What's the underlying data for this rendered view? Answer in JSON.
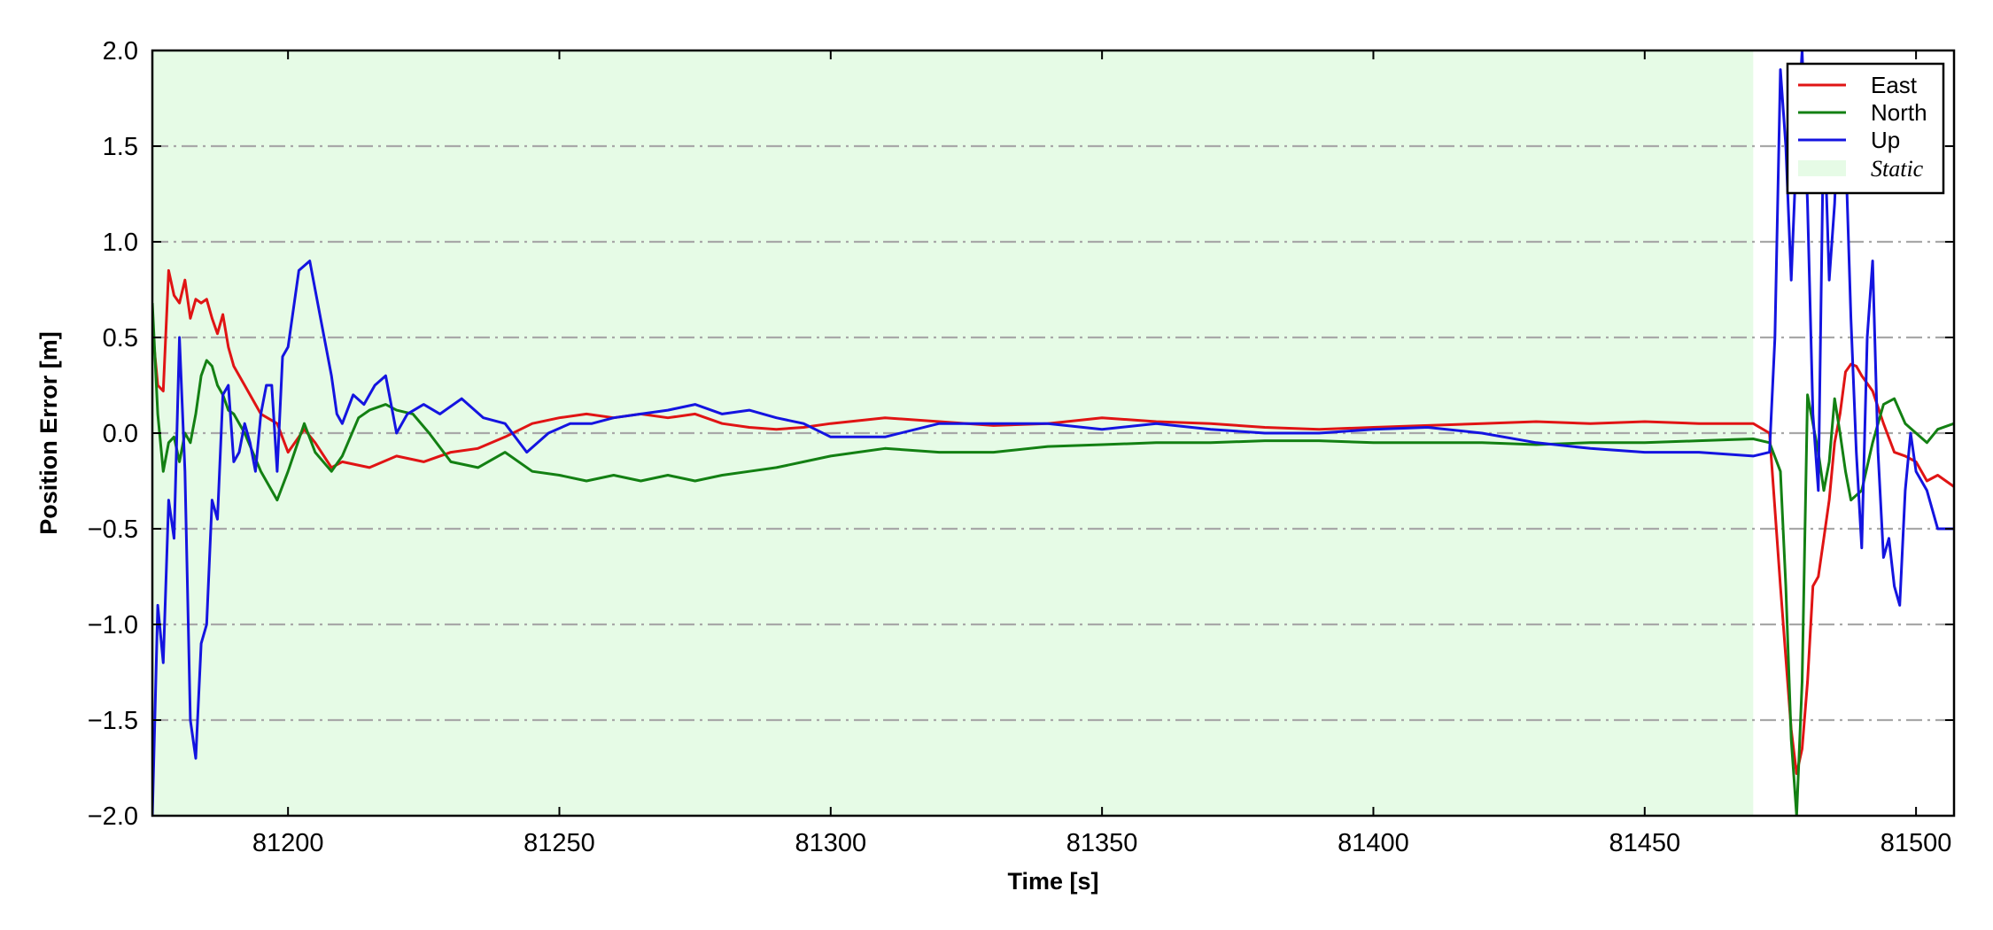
{
  "chart_data": {
    "type": "line",
    "xlabel": "Time [s]",
    "ylabel": "Position Error [m]",
    "xlim": [
      81175,
      81507
    ],
    "ylim": [
      -2.0,
      2.0
    ],
    "x_ticks": [
      81200,
      81250,
      81300,
      81350,
      81400,
      81450,
      81500
    ],
    "x_tick_labels": [
      "81200",
      "81250",
      "81300",
      "81350",
      "81400",
      "81450",
      "81500"
    ],
    "y_ticks": [
      -2.0,
      -1.5,
      -1.0,
      -0.5,
      0.0,
      0.5,
      1.0,
      1.5,
      2.0
    ],
    "y_tick_labels": [
      "−2.0",
      "−1.5",
      "−1.0",
      "−0.5",
      "0.0",
      "0.5",
      "1.0",
      "1.5",
      "2.0"
    ],
    "grid": "horizontal dash-dot",
    "legend_position": "top-right",
    "shaded_region": {
      "name": "Static",
      "x_start": 81175,
      "x_end": 81470,
      "color": "#e6fbe6"
    },
    "series": [
      {
        "name": "East",
        "color": "#e01414",
        "x": [
          81175,
          81176,
          81177,
          81178,
          81179,
          81180,
          81181,
          81182,
          81183,
          81184,
          81185,
          81186,
          81187,
          81188,
          81189,
          81190,
          81192,
          81195,
          81198,
          81200,
          81203,
          81205,
          81208,
          81210,
          81215,
          81220,
          81225,
          81230,
          81235,
          81240,
          81245,
          81250,
          81255,
          81260,
          81265,
          81270,
          81275,
          81280,
          81285,
          81290,
          81295,
          81300,
          81310,
          81320,
          81330,
          81340,
          81350,
          81360,
          81370,
          81380,
          81390,
          81400,
          81410,
          81420,
          81430,
          81440,
          81450,
          81460,
          81470,
          81473,
          81475,
          81477,
          81478,
          81479,
          81480,
          81481,
          81482,
          81483,
          81484,
          81485,
          81486,
          81487,
          81488,
          81489,
          81490,
          81492,
          81494,
          81496,
          81498,
          81500,
          81502,
          81504,
          81507
        ],
        "y": [
          0.55,
          0.25,
          0.22,
          0.85,
          0.72,
          0.68,
          0.8,
          0.6,
          0.7,
          0.68,
          0.7,
          0.6,
          0.52,
          0.62,
          0.45,
          0.35,
          0.25,
          0.1,
          0.05,
          -0.1,
          0.02,
          -0.05,
          -0.18,
          -0.15,
          -0.18,
          -0.12,
          -0.15,
          -0.1,
          -0.08,
          -0.02,
          0.05,
          0.08,
          0.1,
          0.08,
          0.1,
          0.08,
          0.1,
          0.05,
          0.03,
          0.02,
          0.03,
          0.05,
          0.08,
          0.06,
          0.04,
          0.05,
          0.08,
          0.06,
          0.05,
          0.03,
          0.02,
          0.03,
          0.04,
          0.05,
          0.06,
          0.05,
          0.06,
          0.05,
          0.05,
          0.0,
          -0.8,
          -1.55,
          -1.78,
          -1.65,
          -1.3,
          -0.8,
          -0.75,
          -0.55,
          -0.35,
          -0.05,
          0.1,
          0.32,
          0.36,
          0.35,
          0.3,
          0.22,
          0.05,
          -0.1,
          -0.12,
          -0.15,
          -0.25,
          -0.22,
          -0.28
        ]
      },
      {
        "name": "North",
        "color": "#138013",
        "x": [
          81175,
          81176,
          81177,
          81178,
          81179,
          81180,
          81181,
          81182,
          81183,
          81184,
          81185,
          81186,
          81187,
          81188,
          81189,
          81190,
          81192,
          81195,
          81198,
          81200,
          81203,
          81205,
          81208,
          81210,
          81213,
          81215,
          81218,
          81220,
          81223,
          81226,
          81230,
          81235,
          81240,
          81245,
          81250,
          81255,
          81260,
          81265,
          81270,
          81275,
          81280,
          81285,
          81290,
          81295,
          81300,
          81310,
          81320,
          81330,
          81340,
          81350,
          81360,
          81370,
          81380,
          81390,
          81400,
          81410,
          81420,
          81430,
          81440,
          81450,
          81460,
          81470,
          81473,
          81475,
          81476,
          81477,
          81478,
          81479,
          81480,
          81481,
          81482,
          81483,
          81484,
          81485,
          81486,
          81487,
          81488,
          81490,
          81492,
          81494,
          81496,
          81498,
          81500,
          81502,
          81504,
          81507
        ],
        "y": [
          0.68,
          0.1,
          -0.2,
          -0.05,
          -0.02,
          -0.15,
          0.0,
          -0.05,
          0.1,
          0.3,
          0.38,
          0.35,
          0.25,
          0.2,
          0.12,
          0.1,
          0.0,
          -0.2,
          -0.35,
          -0.2,
          0.05,
          -0.1,
          -0.2,
          -0.12,
          0.08,
          0.12,
          0.15,
          0.12,
          0.1,
          0.0,
          -0.15,
          -0.18,
          -0.1,
          -0.2,
          -0.22,
          -0.25,
          -0.22,
          -0.25,
          -0.22,
          -0.25,
          -0.22,
          -0.2,
          -0.18,
          -0.15,
          -0.12,
          -0.08,
          -0.1,
          -0.1,
          -0.07,
          -0.06,
          -0.05,
          -0.05,
          -0.04,
          -0.04,
          -0.05,
          -0.05,
          -0.05,
          -0.06,
          -0.05,
          -0.05,
          -0.04,
          -0.03,
          -0.05,
          -0.2,
          -0.8,
          -1.6,
          -2.0,
          -1.3,
          0.2,
          0.05,
          -0.1,
          -0.3,
          -0.15,
          0.18,
          0.0,
          -0.2,
          -0.35,
          -0.3,
          -0.05,
          0.15,
          0.18,
          0.05,
          0.0,
          -0.05,
          0.02,
          0.05
        ]
      },
      {
        "name": "Up",
        "color": "#1414e0",
        "x": [
          81175,
          81176,
          81177,
          81178,
          81179,
          81180,
          81181,
          81182,
          81183,
          81184,
          81185,
          81186,
          81187,
          81188,
          81189,
          81190,
          81191,
          81192,
          81193,
          81194,
          81195,
          81196,
          81197,
          81198,
          81199,
          81200,
          81202,
          81204,
          81206,
          81208,
          81209,
          81210,
          81212,
          81214,
          81216,
          81218,
          81220,
          81222,
          81225,
          81228,
          81232,
          81236,
          81240,
          81244,
          81248,
          81252,
          81256,
          81260,
          81265,
          81270,
          81275,
          81280,
          81285,
          81290,
          81295,
          81300,
          81310,
          81320,
          81330,
          81340,
          81350,
          81360,
          81370,
          81380,
          81390,
          81400,
          81410,
          81420,
          81430,
          81440,
          81450,
          81460,
          81470,
          81473,
          81474,
          81475,
          81476,
          81477,
          81478,
          81479,
          81480,
          81481,
          81482,
          81483,
          81484,
          81485,
          81486,
          81487,
          81488,
          81489,
          81490,
          81491,
          81492,
          81493,
          81494,
          81495,
          81496,
          81497,
          81498,
          81499,
          81500,
          81502,
          81504,
          81507
        ],
        "y": [
          -2.0,
          -0.9,
          -1.2,
          -0.35,
          -0.55,
          0.5,
          -0.2,
          -1.5,
          -1.7,
          -1.1,
          -1.0,
          -0.35,
          -0.45,
          0.2,
          0.25,
          -0.15,
          -0.1,
          0.05,
          -0.05,
          -0.2,
          0.1,
          0.25,
          0.25,
          -0.2,
          0.4,
          0.45,
          0.85,
          0.9,
          0.6,
          0.3,
          0.1,
          0.05,
          0.2,
          0.15,
          0.25,
          0.3,
          0.0,
          0.1,
          0.15,
          0.1,
          0.18,
          0.08,
          0.05,
          -0.1,
          0.0,
          0.05,
          0.05,
          0.08,
          0.1,
          0.12,
          0.15,
          0.1,
          0.12,
          0.08,
          0.05,
          -0.02,
          -0.02,
          0.05,
          0.05,
          0.05,
          0.02,
          0.05,
          0.02,
          0.0,
          0.0,
          0.02,
          0.03,
          0.0,
          -0.05,
          -0.08,
          -0.1,
          -0.1,
          -0.12,
          -0.1,
          0.5,
          1.9,
          1.5,
          0.8,
          1.5,
          2.0,
          1.2,
          0.1,
          -0.3,
          1.7,
          0.8,
          1.2,
          1.9,
          1.5,
          0.6,
          -0.1,
          -0.6,
          0.5,
          0.9,
          -0.1,
          -0.65,
          -0.55,
          -0.8,
          -0.9,
          -0.3,
          0.0,
          -0.2,
          -0.3,
          -0.5,
          -0.5
        ]
      }
    ]
  }
}
